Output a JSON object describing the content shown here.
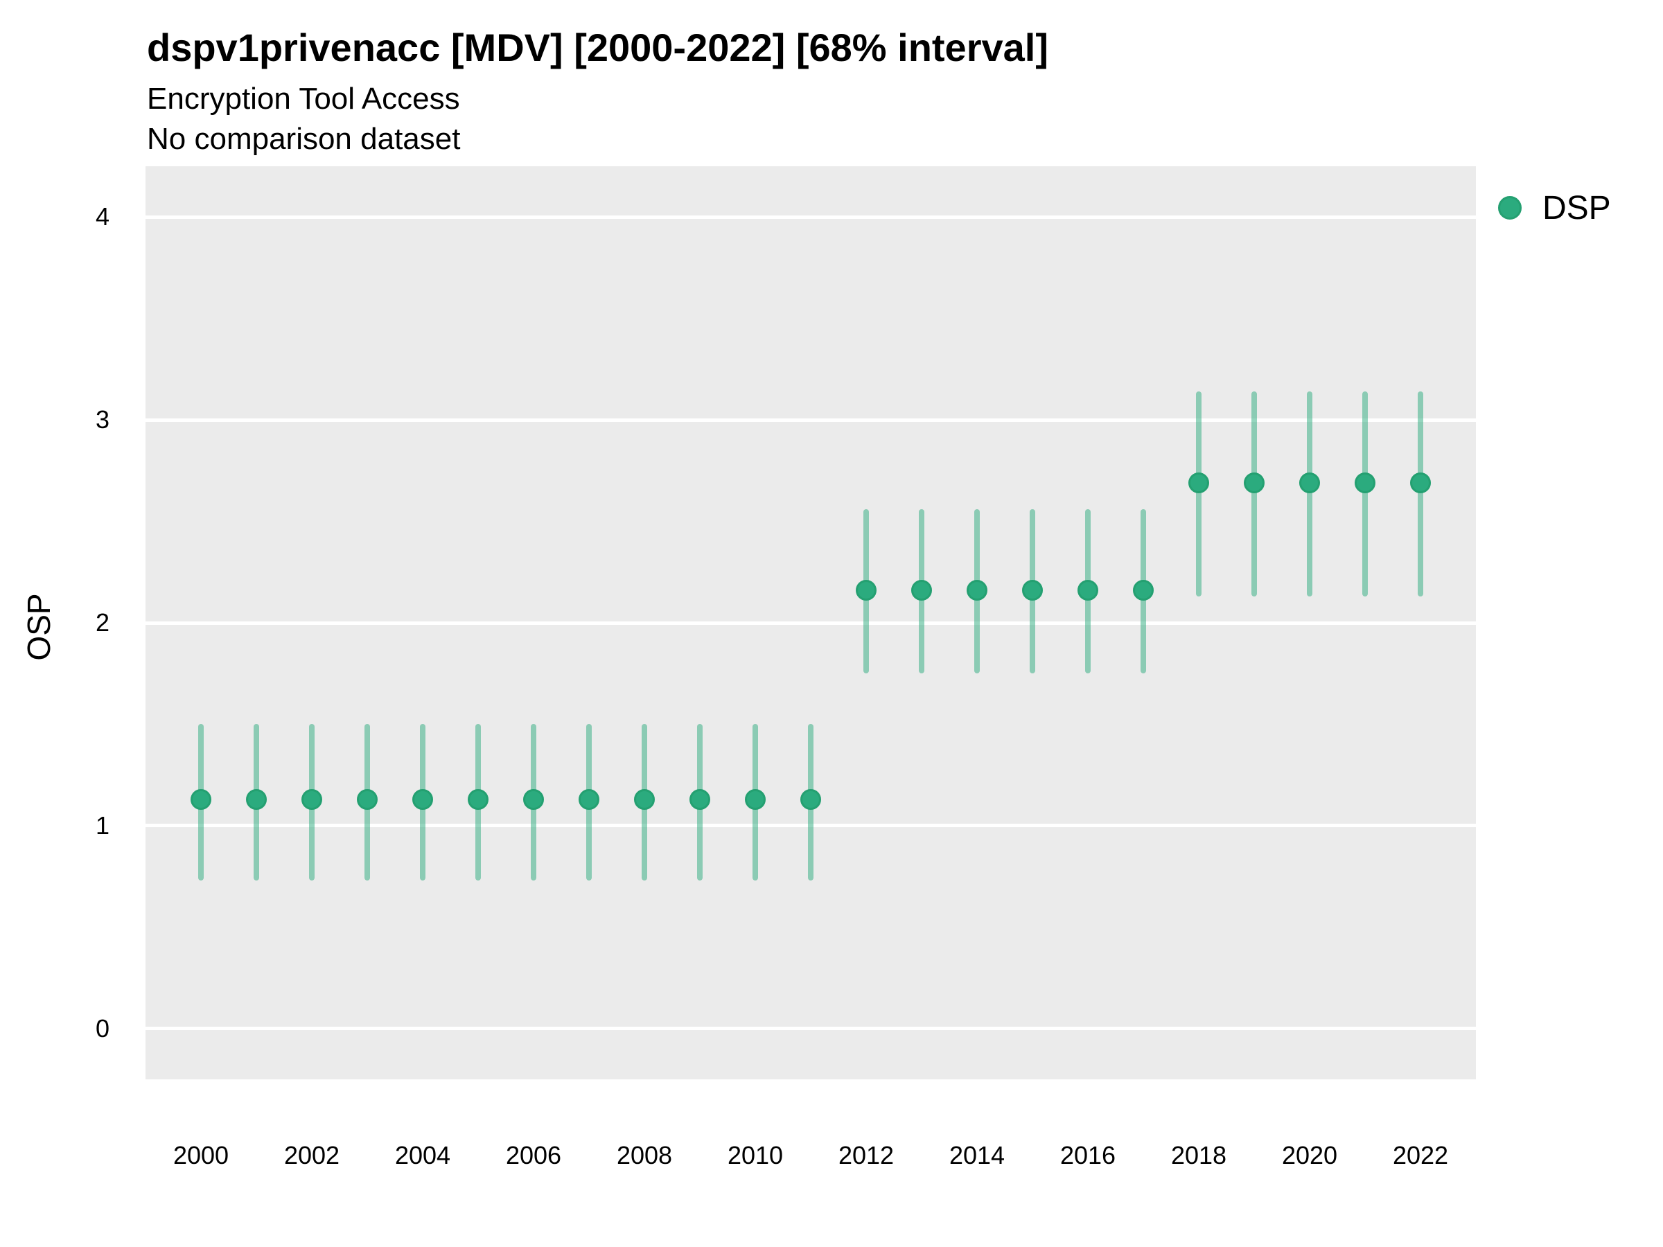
{
  "chart_data": {
    "type": "scatter",
    "title": "dspv1privenacc [MDV] [2000-2022] [68% interval]",
    "subtitle": "Encryption Tool Access",
    "note": "No comparison dataset",
    "xlabel": "",
    "ylabel": "OSP",
    "legend": [
      {
        "label": "DSP",
        "color": "#2BAB7E"
      }
    ],
    "legend_position": "right-top",
    "grid": "major-horizontal-white-on-gray",
    "colors": {
      "marker": "#2BAB7E",
      "marker_edge": "#24A071",
      "interval": "rgba(43,171,126,0.5)",
      "panel_bg": "#EBEBEB",
      "gridline": "#FFFFFF"
    },
    "xlim": [
      1999,
      2023
    ],
    "ylim": [
      -0.25,
      4.25
    ],
    "xticks": [
      2000,
      2002,
      2004,
      2006,
      2008,
      2010,
      2012,
      2014,
      2016,
      2018,
      2020,
      2022
    ],
    "yticks": [
      0,
      1,
      2,
      3,
      4
    ],
    "series": [
      {
        "name": "DSP",
        "points": [
          {
            "x": 2000,
            "y": 1.13,
            "lo": 0.73,
            "hi": 1.5
          },
          {
            "x": 2001,
            "y": 1.13,
            "lo": 0.73,
            "hi": 1.5
          },
          {
            "x": 2002,
            "y": 1.13,
            "lo": 0.73,
            "hi": 1.5
          },
          {
            "x": 2003,
            "y": 1.13,
            "lo": 0.73,
            "hi": 1.5
          },
          {
            "x": 2004,
            "y": 1.13,
            "lo": 0.73,
            "hi": 1.5
          },
          {
            "x": 2005,
            "y": 1.13,
            "lo": 0.73,
            "hi": 1.5
          },
          {
            "x": 2006,
            "y": 1.13,
            "lo": 0.73,
            "hi": 1.5
          },
          {
            "x": 2007,
            "y": 1.13,
            "lo": 0.73,
            "hi": 1.5
          },
          {
            "x": 2008,
            "y": 1.13,
            "lo": 0.73,
            "hi": 1.5
          },
          {
            "x": 2009,
            "y": 1.13,
            "lo": 0.73,
            "hi": 1.5
          },
          {
            "x": 2010,
            "y": 1.13,
            "lo": 0.73,
            "hi": 1.5
          },
          {
            "x": 2011,
            "y": 1.13,
            "lo": 0.73,
            "hi": 1.5
          },
          {
            "x": 2012,
            "y": 2.16,
            "lo": 1.75,
            "hi": 2.56
          },
          {
            "x": 2013,
            "y": 2.16,
            "lo": 1.75,
            "hi": 2.56
          },
          {
            "x": 2014,
            "y": 2.16,
            "lo": 1.75,
            "hi": 2.56
          },
          {
            "x": 2015,
            "y": 2.16,
            "lo": 1.75,
            "hi": 2.56
          },
          {
            "x": 2016,
            "y": 2.16,
            "lo": 1.75,
            "hi": 2.56
          },
          {
            "x": 2017,
            "y": 2.16,
            "lo": 1.75,
            "hi": 2.56
          },
          {
            "x": 2018,
            "y": 2.69,
            "lo": 2.13,
            "hi": 3.14
          },
          {
            "x": 2019,
            "y": 2.69,
            "lo": 2.13,
            "hi": 3.14
          },
          {
            "x": 2020,
            "y": 2.69,
            "lo": 2.13,
            "hi": 3.14
          },
          {
            "x": 2021,
            "y": 2.69,
            "lo": 2.13,
            "hi": 3.14
          },
          {
            "x": 2022,
            "y": 2.69,
            "lo": 2.13,
            "hi": 3.14
          }
        ]
      }
    ]
  }
}
